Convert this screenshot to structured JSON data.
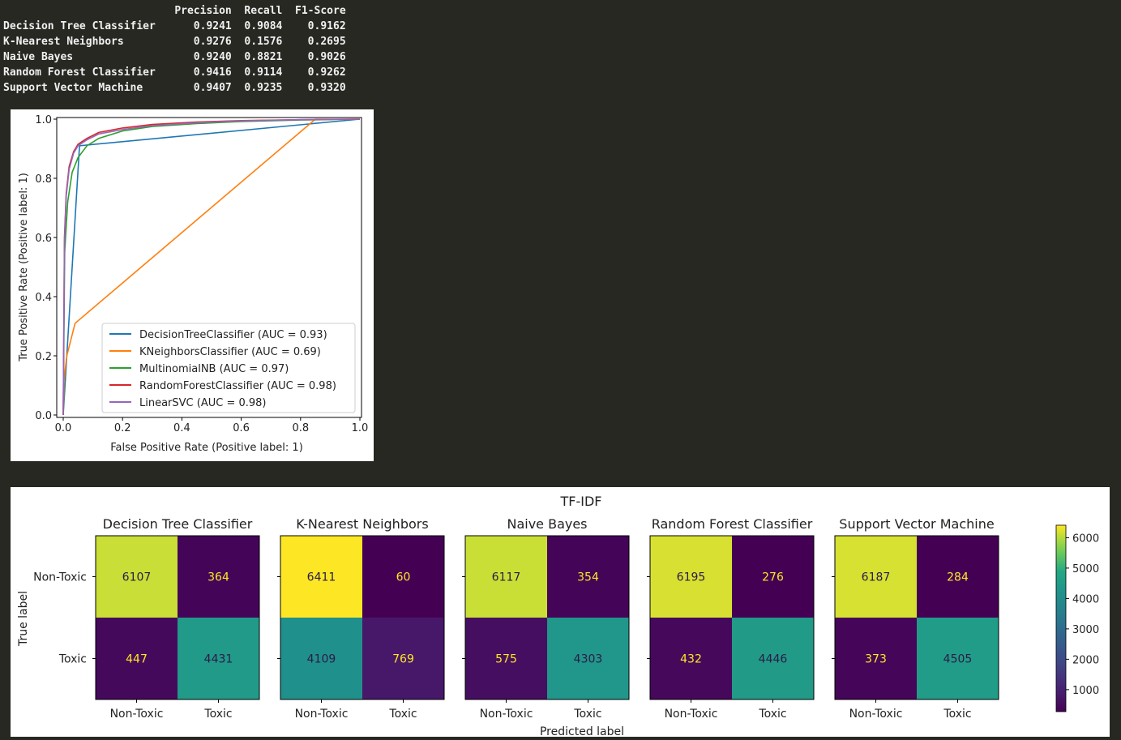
{
  "report": {
    "headers": [
      "Precision",
      "Recall",
      "F1-Score"
    ],
    "rows": [
      {
        "model": "Decision Tree Classifier",
        "precision": "0.9241",
        "recall": "0.9084",
        "f1": "0.9162"
      },
      {
        "model": "K-Nearest Neighbors",
        "precision": "0.9276",
        "recall": "0.1576",
        "f1": "0.2695"
      },
      {
        "model": "Naive Bayes",
        "precision": "0.9240",
        "recall": "0.8821",
        "f1": "0.9026"
      },
      {
        "model": "Random Forest Classifier",
        "precision": "0.9416",
        "recall": "0.9114",
        "f1": "0.9262"
      },
      {
        "model": "Support Vector Machine",
        "precision": "0.9407",
        "recall": "0.9235",
        "f1": "0.9320"
      }
    ]
  },
  "chart_data": [
    {
      "type": "line",
      "xlabel": "False Positive Rate (Positive label: 1)",
      "ylabel": "True Positive Rate (Positive label: 1)",
      "xlim": [
        0,
        1
      ],
      "ylim": [
        0,
        1
      ],
      "ticks": [
        "0.0",
        "0.2",
        "0.4",
        "0.6",
        "0.8",
        "1.0"
      ],
      "legend_position": "lower-right",
      "series": [
        {
          "name": "DecisionTreeClassifier (AUC = 0.93)",
          "color": "#1f77b4",
          "x": [
            0,
            0.055,
            1
          ],
          "y": [
            0,
            0.91,
            1
          ]
        },
        {
          "name": "KNeighborsClassifier (AUC = 0.69)",
          "color": "#ff7f0e",
          "x": [
            0,
            0.003,
            0.012,
            0.04,
            0.85,
            1
          ],
          "y": [
            0,
            0.12,
            0.2,
            0.31,
            1,
            1
          ]
        },
        {
          "name": "MultinomialNB (AUC = 0.97)",
          "color": "#2ca02c",
          "x": [
            0,
            0.005,
            0.015,
            0.03,
            0.05,
            0.08,
            0.12,
            0.2,
            0.3,
            0.45,
            0.6,
            0.8,
            1
          ],
          "y": [
            0,
            0.55,
            0.72,
            0.82,
            0.87,
            0.91,
            0.935,
            0.96,
            0.975,
            0.985,
            0.992,
            0.997,
            1
          ]
        },
        {
          "name": "RandomForestClassifier (AUC = 0.98)",
          "color": "#d62728",
          "x": [
            0,
            0.004,
            0.01,
            0.02,
            0.035,
            0.05,
            0.08,
            0.12,
            0.2,
            0.3,
            0.45,
            0.6,
            0.8,
            1
          ],
          "y": [
            0,
            0.6,
            0.75,
            0.84,
            0.89,
            0.915,
            0.935,
            0.955,
            0.97,
            0.982,
            0.99,
            0.995,
            0.998,
            1
          ]
        },
        {
          "name": "LinearSVC (AUC = 0.98)",
          "color": "#9467bd",
          "x": [
            0,
            0.004,
            0.01,
            0.02,
            0.035,
            0.05,
            0.08,
            0.12,
            0.2,
            0.3,
            0.45,
            0.6,
            0.8,
            1
          ],
          "y": [
            0,
            0.58,
            0.74,
            0.83,
            0.885,
            0.91,
            0.93,
            0.95,
            0.965,
            0.978,
            0.988,
            0.994,
            0.998,
            1
          ]
        }
      ]
    },
    {
      "type": "heatmap",
      "title": "TF-IDF",
      "xlabel": "Predicted label",
      "ylabel": "True label",
      "labels": [
        "Non-Toxic",
        "Toxic"
      ],
      "colorbar": {
        "min": 276,
        "max": 6411,
        "ticks": [
          1000,
          2000,
          3000,
          4000,
          5000,
          6000
        ]
      },
      "matrices": [
        {
          "title": "Decision Tree Classifier",
          "values": [
            [
              6107,
              364
            ],
            [
              447,
              4431
            ]
          ]
        },
        {
          "title": "K-Nearest Neighbors",
          "values": [
            [
              6411,
              60
            ],
            [
              4109,
              769
            ]
          ]
        },
        {
          "title": "Naive Bayes",
          "values": [
            [
              6117,
              354
            ],
            [
              575,
              4303
            ]
          ]
        },
        {
          "title": "Random Forest Classifier",
          "values": [
            [
              6195,
              276
            ],
            [
              432,
              4446
            ]
          ]
        },
        {
          "title": "Support Vector Machine",
          "values": [
            [
              6187,
              284
            ],
            [
              373,
              4505
            ]
          ]
        }
      ]
    }
  ]
}
